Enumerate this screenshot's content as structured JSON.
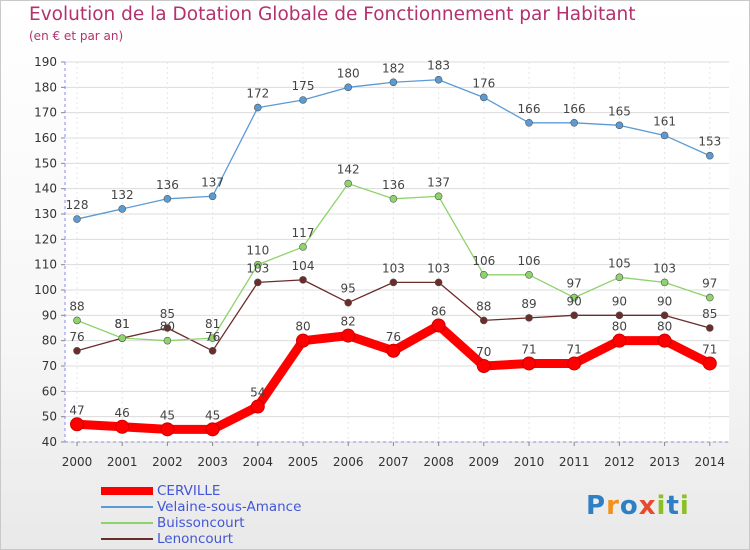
{
  "title": "Evolution de la Dotation Globale de Fonctionnement par Habitant",
  "subtitle": "(en € et par an)",
  "logo": {
    "text": "Proxiti",
    "letters": [
      "P",
      "r",
      "o",
      "x",
      "i",
      "t",
      "i"
    ],
    "colors": [
      "#2e7fc4",
      "#f2921a",
      "#2e7fc4",
      "#e8492c",
      "#8cbf26",
      "#2e7fc4",
      "#8cbf26"
    ]
  },
  "chart_data": {
    "type": "line",
    "title": "Evolution de la Dotation Globale de Fonctionnement par Habitant",
    "subtitle": "(en € et par an)",
    "x": [
      "2000",
      "2001",
      "2002",
      "2003",
      "2004",
      "2005",
      "2006",
      "2007",
      "2008",
      "2009",
      "2010",
      "2011",
      "2012",
      "2013",
      "2014"
    ],
    "ylim": [
      40,
      190
    ],
    "yticks": [
      40,
      50,
      60,
      70,
      80,
      90,
      100,
      110,
      120,
      130,
      140,
      150,
      160,
      170,
      180,
      190
    ],
    "grid": true,
    "legend_position": "bottom-left",
    "series": [
      {
        "name": "CERVILLE",
        "color": "#ff0000",
        "values": [
          47,
          46,
          45,
          45,
          54,
          80,
          82,
          76,
          86,
          70,
          71,
          71,
          80,
          80,
          71
        ]
      },
      {
        "name": "Velaine-sous-Amance",
        "color": "#5b9bd5",
        "values": [
          128,
          132,
          136,
          137,
          172,
          175,
          180,
          182,
          183,
          176,
          166,
          166,
          165,
          161,
          153
        ]
      },
      {
        "name": "Buissoncourt",
        "color": "#8ed36b",
        "values": [
          88,
          81,
          80,
          81,
          110,
          117,
          142,
          136,
          137,
          106,
          106,
          97,
          105,
          103,
          97
        ]
      },
      {
        "name": "Lenoncourt",
        "color": "#6b2c2c",
        "values": [
          76,
          81,
          85,
          76,
          103,
          104,
          95,
          103,
          103,
          88,
          89,
          90,
          90,
          90,
          85
        ]
      }
    ]
  }
}
